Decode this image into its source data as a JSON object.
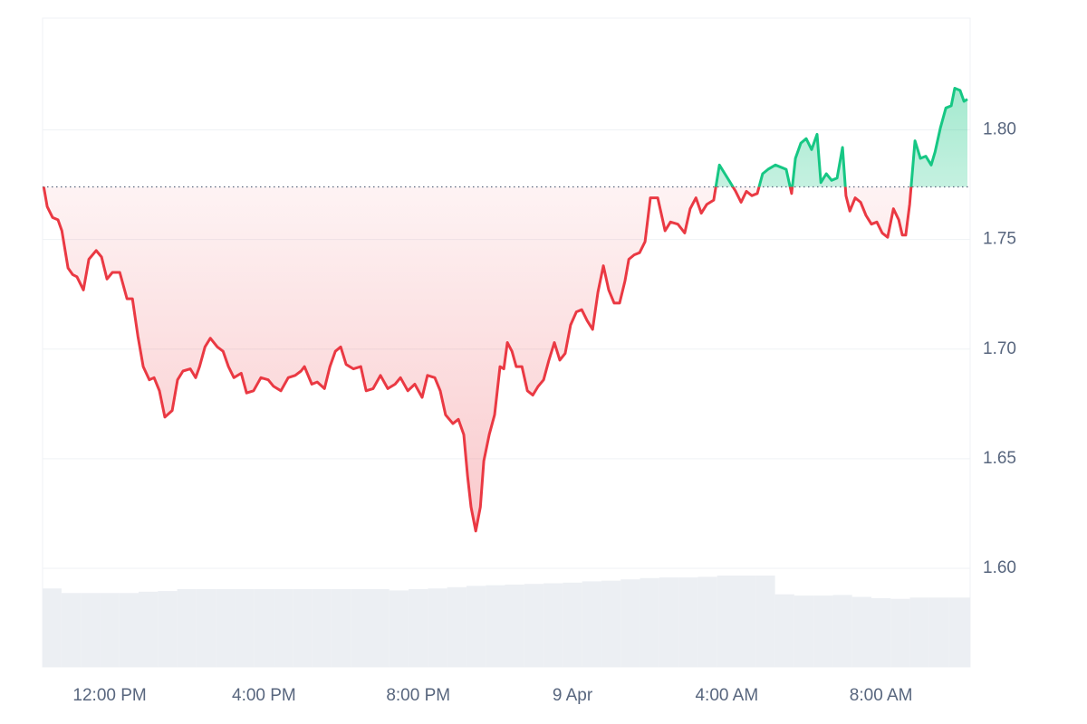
{
  "chart_data": {
    "type": "line",
    "x": [
      10.29,
      10.38,
      10.52,
      10.66,
      10.76,
      10.92,
      11.04,
      11.15,
      11.32,
      11.46,
      11.65,
      11.79,
      11.93,
      12.07,
      12.26,
      12.45,
      12.59,
      12.73,
      12.87,
      13.03,
      13.15,
      13.29,
      13.43,
      13.62,
      13.76,
      13.9,
      14.09,
      14.23,
      14.33,
      14.47,
      14.61,
      14.79,
      14.94,
      15.08,
      15.22,
      15.41,
      15.55,
      15.73,
      15.92,
      16.11,
      16.25,
      16.44,
      16.63,
      16.81,
      16.96,
      17.05,
      17.24,
      17.38,
      17.57,
      17.71,
      17.85,
      17.99,
      18.13,
      18.32,
      18.51,
      18.65,
      18.83,
      19.02,
      19.21,
      19.4,
      19.54,
      19.73,
      19.91,
      20.1,
      20.24,
      20.43,
      20.57,
      20.71,
      20.9,
      21.04,
      21.18,
      21.28,
      21.37,
      21.49,
      21.61,
      21.7,
      21.84,
      21.98,
      22.12,
      22.22,
      22.31,
      22.43,
      22.54,
      22.69,
      22.83,
      22.97,
      23.11,
      23.25,
      23.39,
      23.53,
      23.67,
      23.81,
      23.95,
      24.1,
      24.24,
      24.38,
      24.52,
      24.66,
      24.8,
      24.94,
      25.08,
      25.22,
      25.36,
      25.46,
      25.6,
      25.74,
      25.88,
      26.02,
      26.21,
      26.4,
      26.54,
      26.73,
      26.91,
      27.05,
      27.2,
      27.34,
      27.48,
      27.66,
      27.81,
      27.95,
      28.09,
      28.23,
      28.37,
      28.51,
      28.65,
      28.79,
      28.93,
      29.07,
      29.26,
      29.4,
      29.54,
      29.68,
      29.78,
      29.92,
      30.06,
      30.2,
      30.34,
      30.44,
      30.58,
      30.72,
      30.86,
      31.0,
      31.09,
      31.19,
      31.33,
      31.47,
      31.61,
      31.75,
      31.89,
      32.03,
      32.17,
      32.32,
      32.46,
      32.55,
      32.64,
      32.74,
      32.88,
      33.02,
      33.16,
      33.3,
      33.4,
      33.54,
      33.68,
      33.82,
      33.91,
      34.05,
      34.15,
      34.24
    ],
    "values": [
      1.774,
      1.765,
      1.76,
      1.759,
      1.754,
      1.737,
      1.734,
      1.733,
      1.727,
      1.741,
      1.745,
      1.742,
      1.732,
      1.735,
      1.735,
      1.723,
      1.723,
      1.706,
      1.692,
      1.686,
      1.687,
      1.681,
      1.669,
      1.672,
      1.686,
      1.69,
      1.691,
      1.687,
      1.692,
      1.701,
      1.705,
      1.701,
      1.699,
      1.692,
      1.687,
      1.689,
      1.68,
      1.681,
      1.687,
      1.686,
      1.683,
      1.681,
      1.687,
      1.688,
      1.69,
      1.692,
      1.684,
      1.685,
      1.682,
      1.692,
      1.699,
      1.701,
      1.693,
      1.691,
      1.692,
      1.681,
      1.682,
      1.688,
      1.682,
      1.684,
      1.687,
      1.681,
      1.684,
      1.678,
      1.688,
      1.687,
      1.681,
      1.67,
      1.666,
      1.668,
      1.661,
      1.642,
      1.628,
      1.617,
      1.628,
      1.649,
      1.661,
      1.67,
      1.692,
      1.691,
      1.703,
      1.699,
      1.692,
      1.692,
      1.681,
      1.679,
      1.683,
      1.686,
      1.695,
      1.703,
      1.695,
      1.698,
      1.711,
      1.717,
      1.718,
      1.713,
      1.709,
      1.726,
      1.738,
      1.727,
      1.721,
      1.721,
      1.731,
      1.741,
      1.743,
      1.744,
      1.749,
      1.769,
      1.769,
      1.754,
      1.758,
      1.757,
      1.753,
      1.764,
      1.769,
      1.762,
      1.766,
      1.768,
      1.784,
      1.78,
      1.776,
      1.772,
      1.767,
      1.772,
      1.77,
      1.771,
      1.78,
      1.782,
      1.784,
      1.783,
      1.782,
      1.771,
      1.787,
      1.794,
      1.796,
      1.791,
      1.798,
      1.776,
      1.78,
      1.777,
      1.778,
      1.792,
      1.77,
      1.763,
      1.769,
      1.767,
      1.761,
      1.757,
      1.758,
      1.753,
      1.751,
      1.764,
      1.759,
      1.752,
      1.752,
      1.766,
      1.795,
      1.787,
      1.788,
      1.784,
      1.79,
      1.801,
      1.81,
      1.811,
      1.819,
      1.818,
      1.813,
      1.814
    ],
    "baseline": 1.774,
    "color_up": "#16c784",
    "color_down": "#ea3943",
    "xlim": [
      10.26,
      34.31
    ],
    "xticks": [
      {
        "value": 12,
        "label": "12:00 PM"
      },
      {
        "value": 16,
        "label": "4:00 PM"
      },
      {
        "value": 20,
        "label": "8:00 PM"
      },
      {
        "value": 24,
        "label": "9 Apr"
      },
      {
        "value": 28,
        "label": "4:00 AM"
      },
      {
        "value": 32,
        "label": "8:00 AM"
      }
    ],
    "ylim": [
      1.555,
      1.851
    ],
    "yticks": [
      {
        "value": 1.6,
        "label": "1.60"
      },
      {
        "value": 1.65,
        "label": "1.65"
      },
      {
        "value": 1.7,
        "label": "1.70"
      },
      {
        "value": 1.75,
        "label": "1.75"
      },
      {
        "value": 1.8,
        "label": "1.80"
      }
    ],
    "grid": true,
    "volume": {
      "axis": "y2",
      "color": "#eceff3",
      "x": [
        10.25,
        10.75,
        11.25,
        11.75,
        12.25,
        12.75,
        13.25,
        13.75,
        14.25,
        14.75,
        15.25,
        15.75,
        16.25,
        16.75,
        17.25,
        17.75,
        18.25,
        18.75,
        19.25,
        19.75,
        20.25,
        20.75,
        21.25,
        21.75,
        22.25,
        22.75,
        23.25,
        23.75,
        24.25,
        24.75,
        25.25,
        25.75,
        26.25,
        26.75,
        27.25,
        27.75,
        28.25,
        28.75,
        29.25,
        29.75,
        30.25,
        30.75,
        31.25,
        31.75,
        32.25,
        32.75,
        33.25,
        33.75
      ],
      "values": [
        12.1,
        11.4,
        11.4,
        11.4,
        11.4,
        11.6,
        11.7,
        12.0,
        12.0,
        12.0,
        12.0,
        12.0,
        12.0,
        12.0,
        12.0,
        12.0,
        12.0,
        12.0,
        11.8,
        12.0,
        12.1,
        12.3,
        12.5,
        12.6,
        12.7,
        12.8,
        12.9,
        13.0,
        13.2,
        13.3,
        13.5,
        13.7,
        13.8,
        13.8,
        13.9,
        14.1,
        14.1,
        14.1,
        11.2,
        11.0,
        11.0,
        11.1,
        10.8,
        10.6,
        10.5,
        10.7,
        10.7,
        10.7
      ]
    },
    "y2lim": [
      0,
      100
    ]
  }
}
